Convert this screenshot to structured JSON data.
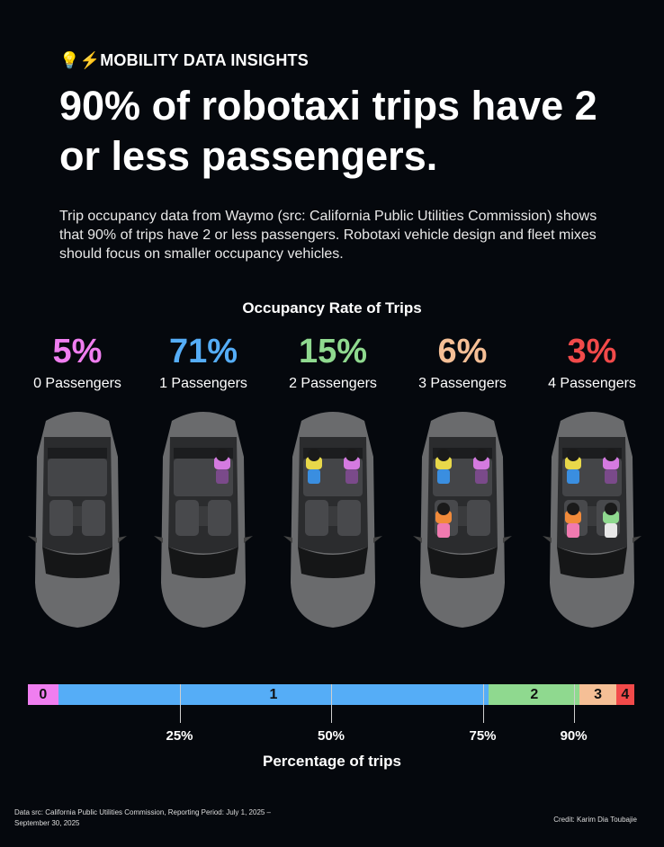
{
  "header": {
    "kicker_icons": "💡⚡",
    "kicker": "MOBILITY DATA INSIGHTS",
    "title": "90% of robotaxi trips have 2 or less passengers.",
    "description": "Trip occupancy data from Waymo (src: California Public Utilities Commission) shows that 90% of trips have 2 or less passengers. Robotaxi vehicle design and fleet mixes should focus on smaller occupancy vehicles."
  },
  "chart_data": {
    "type": "bar",
    "orientation": "horizontal-stacked",
    "title": "Occupancy Rate of Trips",
    "categories": [
      "0 Passengers",
      "1 Passengers",
      "2 Passengers",
      "3 Passengers",
      "4 Passengers"
    ],
    "segment_labels": [
      "0",
      "1",
      "2",
      "3",
      "4"
    ],
    "values": [
      5,
      71,
      15,
      6,
      3
    ],
    "value_labels": [
      "5%",
      "71%",
      "15%",
      "6%",
      "3%"
    ],
    "colors": [
      "#f07ef0",
      "#55adf7",
      "#8fd98f",
      "#f5bf96",
      "#f24a4a"
    ],
    "xlabel": "Percentage of trips",
    "xlim": [
      0,
      100
    ],
    "ticks": [
      25,
      50,
      75,
      90
    ],
    "tick_labels": [
      "25%",
      "50%",
      "75%",
      "90%"
    ]
  },
  "footer": {
    "source": "Data src: California Public Utilities Commission, Reporting Period: July 1, 2025 – September 30, 2025",
    "credit": "Credit: Karim Dia Toubajie"
  }
}
